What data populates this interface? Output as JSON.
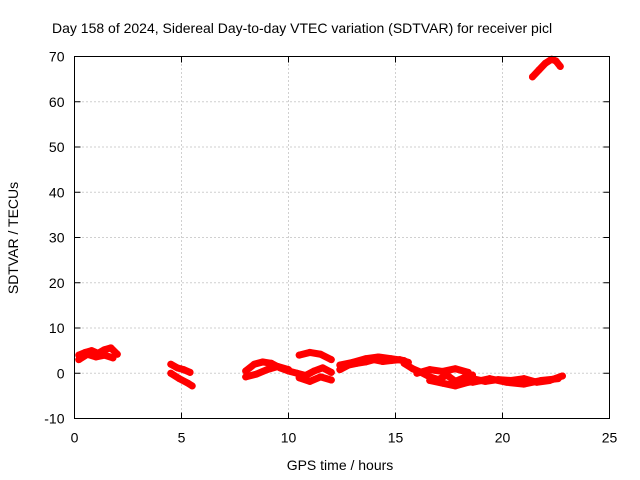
{
  "chart_data": {
    "type": "scatter",
    "title": "Day 158 of 2024, Sidereal Day-to-day VTEC variation (SDTVAR) for receiver picl",
    "xlabel": "GPS time / hours",
    "ylabel": "SDTVAR / TECUs",
    "xlim": [
      0,
      25
    ],
    "ylim": [
      -10,
      70
    ],
    "xticks": [
      0,
      5,
      10,
      15,
      20,
      25
    ],
    "yticks": [
      -10,
      0,
      10,
      20,
      30,
      40,
      50,
      60,
      70
    ],
    "grid": true,
    "grid_style": "dotted",
    "series": [
      {
        "name": "SDTVAR",
        "color": "#ff0000",
        "segments": [
          {
            "x": [
              0.2,
              0.5,
              0.8,
              1.1,
              1.4,
              1.7,
              2.0
            ],
            "y": [
              4.0,
              4.6,
              5.0,
              4.4,
              5.2,
              5.6,
              4.2
            ]
          },
          {
            "x": [
              0.2,
              0.6,
              1.0,
              1.4,
              1.8
            ],
            "y": [
              3.0,
              4.2,
              3.6,
              4.0,
              3.4
            ]
          },
          {
            "x": [
              4.5,
              4.8,
              5.1,
              5.4
            ],
            "y": [
              2.0,
              1.2,
              0.8,
              0.2
            ]
          },
          {
            "x": [
              4.5,
              4.9,
              5.3,
              5.5
            ],
            "y": [
              0.0,
              -1.2,
              -2.2,
              -2.8
            ]
          },
          {
            "x": [
              8.0,
              8.4,
              8.8,
              9.2,
              9.6,
              10.0,
              10.4,
              10.8,
              11.2,
              11.6,
              12.0
            ],
            "y": [
              0.5,
              2.0,
              2.5,
              2.2,
              1.2,
              0.5,
              0.0,
              -0.5,
              0.5,
              1.2,
              0.2
            ]
          },
          {
            "x": [
              8.0,
              8.5,
              9.0,
              9.5,
              10.0
            ],
            "y": [
              -0.8,
              -0.2,
              0.8,
              1.5,
              0.8
            ]
          },
          {
            "x": [
              10.5,
              11.0,
              11.5,
              12.0
            ],
            "y": [
              -1.0,
              -1.8,
              -0.8,
              -1.5
            ]
          },
          {
            "x": [
              10.5,
              11.0,
              11.5,
              12.0
            ],
            "y": [
              4.0,
              4.6,
              4.2,
              3.0
            ]
          },
          {
            "x": [
              12.4,
              12.8,
              13.2,
              13.6,
              14.0,
              14.4,
              14.8,
              15.2,
              15.6
            ],
            "y": [
              0.8,
              1.8,
              2.2,
              2.5,
              3.0,
              2.6,
              2.8,
              3.0,
              2.4
            ]
          },
          {
            "x": [
              12.4,
              13.0,
              13.6,
              14.2,
              14.8,
              15.4
            ],
            "y": [
              1.8,
              2.4,
              3.2,
              3.6,
              3.2,
              2.8
            ]
          },
          {
            "x": [
              15.4,
              15.8,
              16.2,
              16.6,
              17.0,
              17.4,
              17.8,
              18.2,
              18.6
            ],
            "y": [
              2.2,
              1.0,
              0.2,
              -0.8,
              -1.4,
              -0.4,
              -1.8,
              -1.0,
              -0.4
            ]
          },
          {
            "x": [
              16.0,
              16.6,
              17.2,
              17.8,
              18.4
            ],
            "y": [
              0.0,
              0.8,
              0.4,
              1.0,
              0.2
            ]
          },
          {
            "x": [
              16.6,
              17.2,
              17.8,
              18.4,
              19.0
            ],
            "y": [
              -1.6,
              -2.2,
              -2.8,
              -2.0,
              -1.6
            ]
          },
          {
            "x": [
              18.6,
              19.2,
              19.8,
              20.4,
              21.0,
              21.6,
              22.2,
              22.8
            ],
            "y": [
              -1.2,
              -1.8,
              -1.4,
              -1.6,
              -1.2,
              -2.0,
              -1.6,
              -0.6
            ]
          },
          {
            "x": [
              18.6,
              19.4,
              20.2,
              21.0,
              21.8,
              22.6
            ],
            "y": [
              -2.0,
              -1.2,
              -2.0,
              -2.4,
              -1.6,
              -1.2
            ]
          },
          {
            "x": [
              21.4,
              21.7,
              22.0,
              22.3,
              22.5,
              22.7
            ],
            "y": [
              65.5,
              67.0,
              68.5,
              69.4,
              69.0,
              67.8
            ]
          }
        ]
      }
    ]
  }
}
